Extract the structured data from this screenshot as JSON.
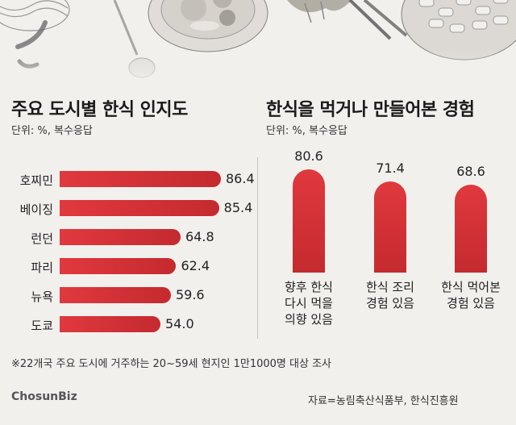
{
  "left_chart": {
    "title": "주요 도시별 한식 인지도",
    "unit": "단위: %, 복수응답"
  },
  "right_chart": {
    "title": "한식을 먹거나 만들어본 경험",
    "unit": "단위: %, 복수응답"
  },
  "footnote": "※22개국 주요 도시에 거주하는 20~59세 현지인 1만1000명 대상 조사",
  "logo": "ChosunBiz",
  "source": "자료=농림축산식품부, 한식진흥원",
  "colors": {
    "bar": "#e0393e",
    "bar_dark": "#c42a2f",
    "background": "#f2f0ed"
  },
  "chart_data": [
    {
      "type": "bar",
      "orientation": "horizontal",
      "title": "주요 도시별 한식 인지도",
      "categories": [
        "호찌민",
        "베이징",
        "런던",
        "파리",
        "뉴욕",
        "도쿄"
      ],
      "values": [
        86.4,
        85.4,
        64.8,
        62.4,
        59.6,
        54.0
      ],
      "value_labels": [
        "86.4",
        "85.4",
        "64.8",
        "62.4",
        "59.6",
        "54.0"
      ],
      "xlim": [
        0,
        100
      ]
    },
    {
      "type": "bar",
      "orientation": "vertical",
      "title": "한식을 먹거나 만들어본 경험",
      "categories": [
        "향후 한식\n다시 먹을\n의향 있음",
        "한식 조리\n경험 있음",
        "한식 먹어본\n경험 있음"
      ],
      "values": [
        80.6,
        71.4,
        68.6
      ],
      "value_labels": [
        "80.6",
        "71.4",
        "68.6"
      ],
      "ylim": [
        0,
        100
      ]
    }
  ]
}
